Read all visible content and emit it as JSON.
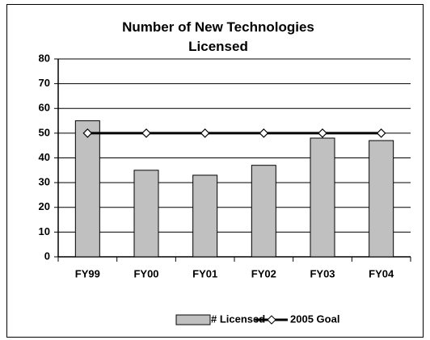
{
  "chart_data": {
    "type": "bar",
    "title": "Number of New Technologies Licensed",
    "categories": [
      "FY99",
      "FY00",
      "FY01",
      "FY02",
      "FY03",
      "FY04"
    ],
    "series": [
      {
        "name": "# Licensed",
        "color": "#c0c0c0",
        "values": [
          55,
          35,
          33,
          37,
          48,
          47
        ]
      },
      {
        "name": "2005 Goal",
        "color": "#000000",
        "type": "line",
        "values": [
          50,
          50,
          50,
          50,
          50,
          50
        ]
      }
    ],
    "ylim": [
      0,
      80
    ],
    "yticks": [
      0,
      10,
      20,
      30,
      40,
      50,
      60,
      70,
      80
    ],
    "grid": true,
    "legend": "bottom"
  }
}
